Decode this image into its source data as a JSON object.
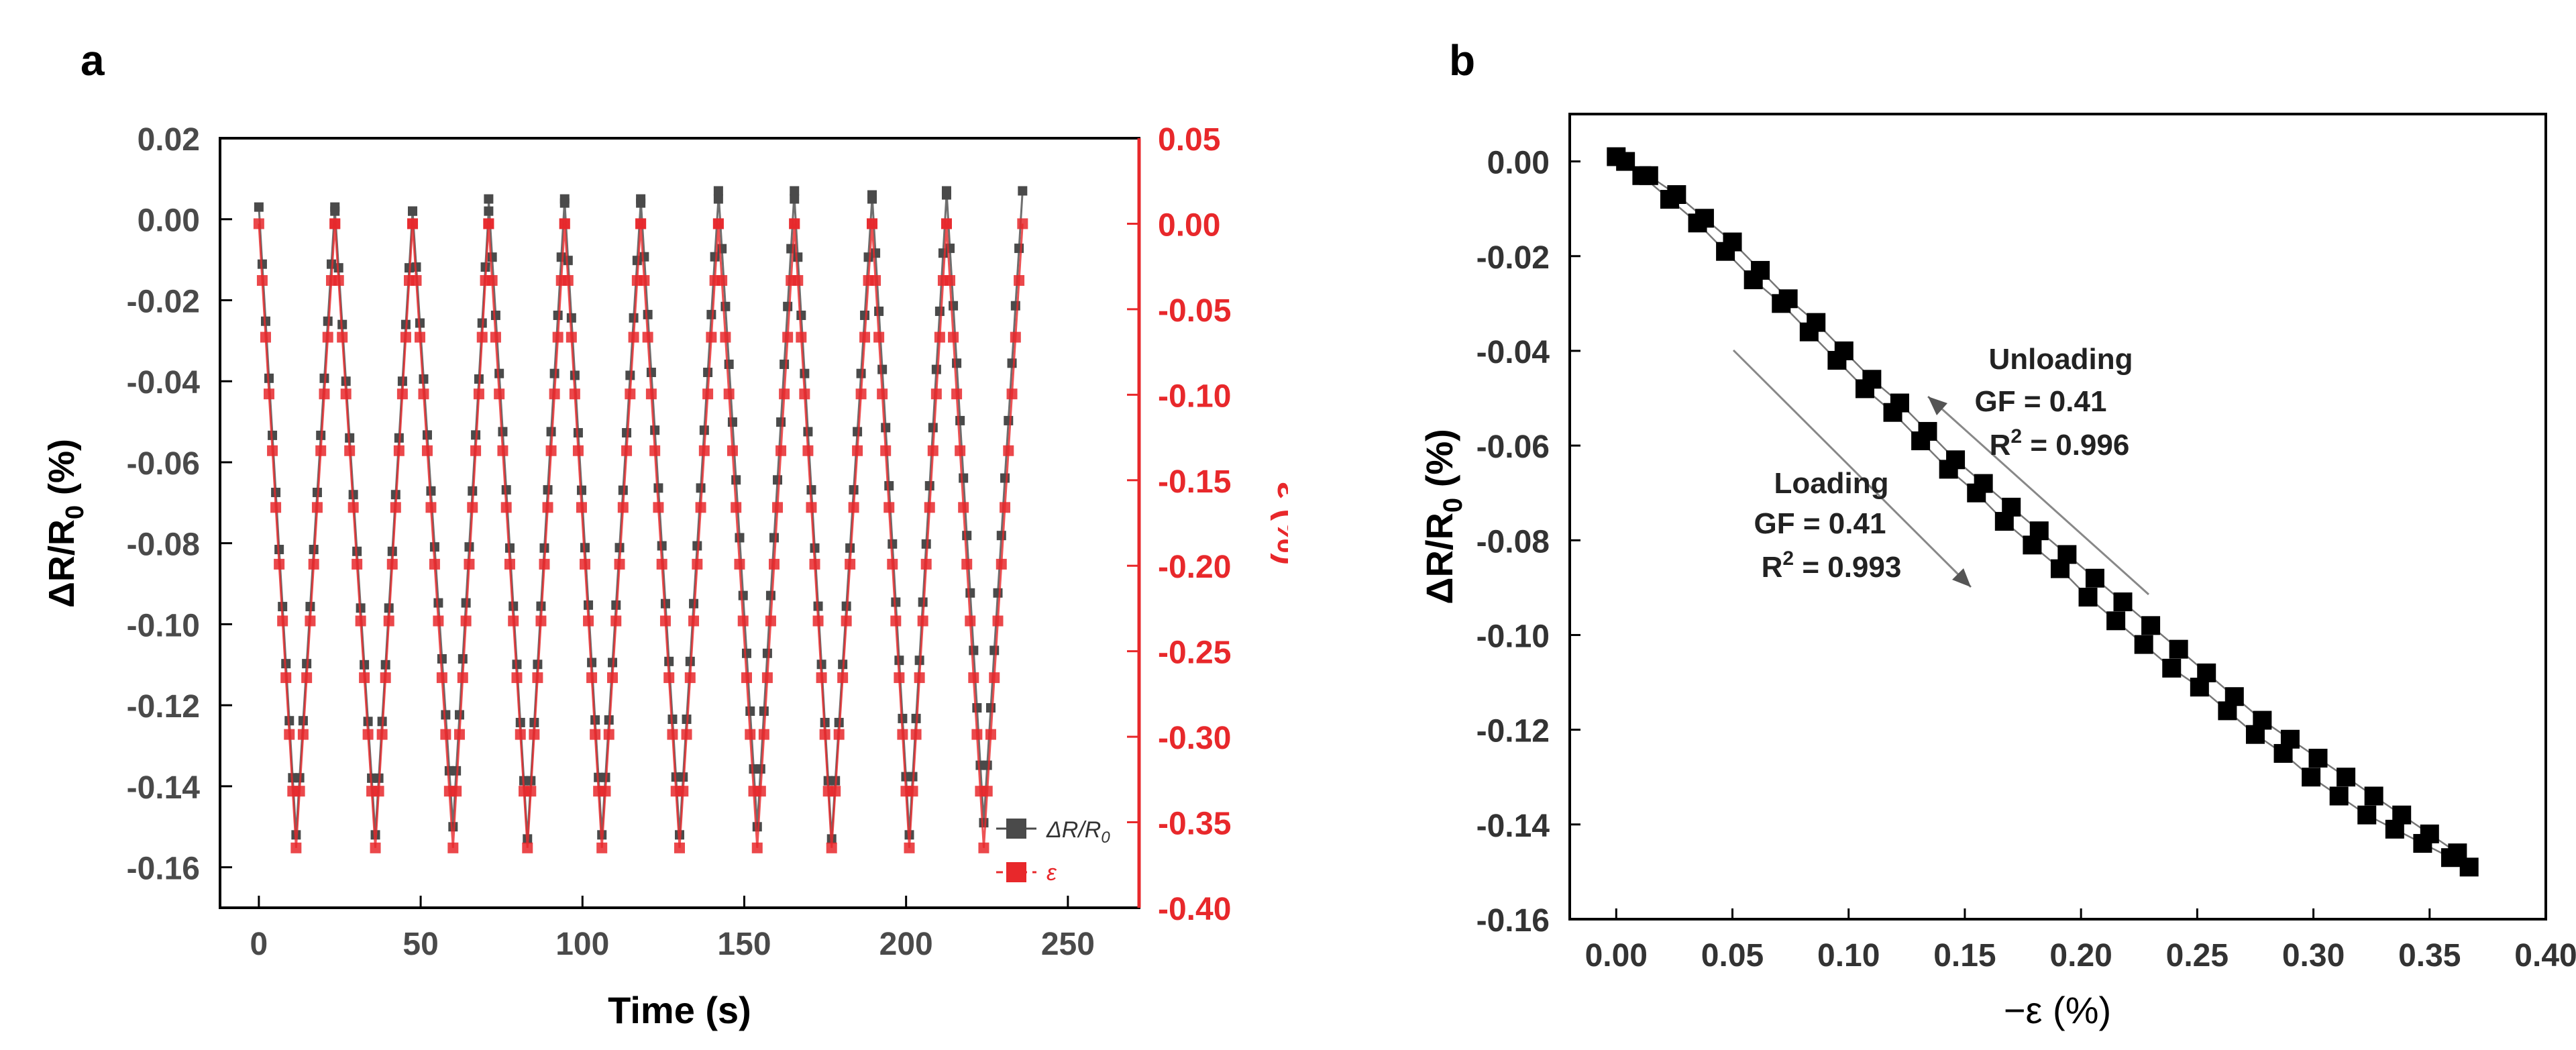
{
  "figure": {
    "panel_a_label": "a",
    "panel_b_label": "b"
  },
  "colors": {
    "gray": "#4a4a4a",
    "red": "#e8282b",
    "black": "#000000",
    "dark_line": "#555555",
    "light_line": "#888888"
  },
  "chart_data": [
    {
      "panel": "a",
      "type": "line",
      "title": "",
      "xlabel": "Time (s)",
      "ylabel_prefix": "ΔR/R",
      "ylabel_sub": "0",
      "ylabel_suffix": " (%)",
      "y2label": "ε (%)",
      "xlim": [
        -12,
        272
      ],
      "ylim": [
        -0.17,
        0.02
      ],
      "y2lim": [
        -0.4,
        0.05
      ],
      "xticks": [
        0,
        50,
        100,
        150,
        200,
        250
      ],
      "xtick_labels": [
        "0",
        "50",
        "100",
        "150",
        "200",
        "250"
      ],
      "yticks": [
        0.02,
        0.0,
        -0.02,
        -0.04,
        -0.06,
        -0.08,
        -0.1,
        -0.12,
        -0.14,
        -0.16
      ],
      "ytick_labels": [
        "0.02",
        "0.00",
        "-0.02",
        "-0.04",
        "-0.06",
        "-0.08",
        "-0.10",
        "-0.12",
        "-0.14",
        "-0.16"
      ],
      "y2ticks": [
        0.05,
        0.0,
        -0.05,
        -0.1,
        -0.15,
        -0.2,
        -0.25,
        -0.3,
        -0.35,
        -0.4
      ],
      "y2tick_labels": [
        "0.05",
        "0.00",
        "-0.05",
        "-0.10",
        "-0.15",
        "-0.20",
        "-0.25",
        "-0.30",
        "-0.35",
        "-0.40"
      ],
      "legend": {
        "position": "bottom-right",
        "entries": [
          {
            "name": "ΔR/R0",
            "text_main": "ΔR/R",
            "text_sub": "0",
            "color": "#4a4a4a"
          },
          {
            "name": "ε",
            "text_main": "ε",
            "text_sub": "",
            "color": "#e8282b"
          }
        ]
      },
      "series": [
        {
          "name": "ΔR/R0",
          "axis": "left",
          "color": "#4a4a4a",
          "cycles": [
            {
              "start": 0,
              "peak": 11.5,
              "end": 23.5,
              "min": -0.152,
              "top": 0.003
            },
            {
              "start": 23.5,
              "peak": 36,
              "end": 47.5,
              "min": -0.152,
              "top": 0.002
            },
            {
              "start": 47.5,
              "peak": 60,
              "end": 71,
              "min": -0.15,
              "top": 0.002
            },
            {
              "start": 71,
              "peak": 83,
              "end": 94.5,
              "min": -0.153,
              "top": 0.005
            },
            {
              "start": 94.5,
              "peak": 106,
              "end": 118,
              "min": -0.152,
              "top": 0.004
            },
            {
              "start": 118,
              "peak": 130,
              "end": 142,
              "min": -0.152,
              "top": 0.005
            },
            {
              "start": 142,
              "peak": 154,
              "end": 165.5,
              "min": -0.15,
              "top": 0.007
            },
            {
              "start": 165.5,
              "peak": 177,
              "end": 189.5,
              "min": -0.153,
              "top": 0.005
            },
            {
              "start": 189.5,
              "peak": 201,
              "end": 212.5,
              "min": -0.152,
              "top": 0.006
            },
            {
              "start": 212.5,
              "peak": 224,
              "end": 236,
              "min": -0.149,
              "top": 0.007
            }
          ]
        },
        {
          "name": "ε",
          "axis": "right",
          "color": "#e8282b",
          "cycles": [
            {
              "start": 0,
              "peak": 11.5,
              "end": 23.5,
              "min": -0.365,
              "top": 0.0
            },
            {
              "start": 23.5,
              "peak": 36,
              "end": 47.5,
              "min": -0.365,
              "top": 0.0
            },
            {
              "start": 47.5,
              "peak": 60,
              "end": 71,
              "min": -0.365,
              "top": 0.0
            },
            {
              "start": 71,
              "peak": 83,
              "end": 94.5,
              "min": -0.365,
              "top": 0.0
            },
            {
              "start": 94.5,
              "peak": 106,
              "end": 118,
              "min": -0.365,
              "top": 0.0
            },
            {
              "start": 118,
              "peak": 130,
              "end": 142,
              "min": -0.365,
              "top": 0.0
            },
            {
              "start": 142,
              "peak": 154,
              "end": 165.5,
              "min": -0.365,
              "top": 0.0
            },
            {
              "start": 165.5,
              "peak": 177,
              "end": 189.5,
              "min": -0.365,
              "top": 0.0
            },
            {
              "start": 189.5,
              "peak": 201,
              "end": 212.5,
              "min": -0.365,
              "top": 0.0
            },
            {
              "start": 212.5,
              "peak": 224,
              "end": 236,
              "min": -0.365,
              "top": 0.0
            }
          ]
        }
      ]
    },
    {
      "panel": "b",
      "type": "scatter",
      "title": "",
      "xlabel": "−ε (%)",
      "ylabel_prefix": "ΔR/R",
      "ylabel_sub": "0",
      "ylabel_suffix": " (%)",
      "xlim": [
        -0.02,
        0.4
      ],
      "ylim": [
        -0.16,
        0.01
      ],
      "xticks": [
        0.0,
        0.05,
        0.1,
        0.15,
        0.2,
        0.25,
        0.3,
        0.35,
        0.4
      ],
      "xtick_labels": [
        "0.00",
        "0.05",
        "0.10",
        "0.15",
        "0.20",
        "0.25",
        "0.30",
        "0.35",
        "0.40"
      ],
      "yticks": [
        0.0,
        -0.02,
        -0.04,
        -0.06,
        -0.08,
        -0.1,
        -0.12,
        -0.14,
        -0.16
      ],
      "ytick_labels": [
        "0.00",
        "-0.02",
        "-0.04",
        "-0.06",
        "-0.08",
        "-0.10",
        "-0.12",
        "-0.14",
        "-0.16"
      ],
      "series": [
        {
          "name": "Loading",
          "color": "#000000",
          "x": [
            0.0,
            0.011,
            0.023,
            0.035,
            0.047,
            0.059,
            0.071,
            0.083,
            0.095,
            0.107,
            0.119,
            0.131,
            0.143,
            0.155,
            0.167,
            0.179,
            0.191,
            0.203,
            0.215,
            0.227,
            0.239,
            0.251,
            0.263,
            0.275,
            0.287,
            0.299,
            0.311,
            0.323,
            0.335,
            0.347,
            0.359,
            0.367
          ],
          "y": [
            0.001,
            -0.003,
            -0.008,
            -0.013,
            -0.019,
            -0.025,
            -0.03,
            -0.036,
            -0.042,
            -0.048,
            -0.053,
            -0.059,
            -0.065,
            -0.07,
            -0.076,
            -0.081,
            -0.086,
            -0.092,
            -0.097,
            -0.102,
            -0.107,
            -0.111,
            -0.116,
            -0.121,
            -0.125,
            -0.13,
            -0.134,
            -0.138,
            -0.141,
            -0.144,
            -0.147,
            -0.149
          ]
        },
        {
          "name": "Unloading",
          "color": "#000000",
          "x": [
            0.362,
            0.35,
            0.338,
            0.326,
            0.314,
            0.302,
            0.29,
            0.278,
            0.266,
            0.254,
            0.242,
            0.23,
            0.218,
            0.206,
            0.194,
            0.182,
            0.17,
            0.158,
            0.146,
            0.134,
            0.122,
            0.11,
            0.098,
            0.086,
            0.074,
            0.062,
            0.05,
            0.038,
            0.026,
            0.014,
            0.004
          ],
          "y": [
            -0.146,
            -0.142,
            -0.138,
            -0.134,
            -0.13,
            -0.126,
            -0.122,
            -0.118,
            -0.113,
            -0.108,
            -0.103,
            -0.098,
            -0.093,
            -0.088,
            -0.083,
            -0.078,
            -0.073,
            -0.068,
            -0.063,
            -0.057,
            -0.051,
            -0.046,
            -0.04,
            -0.034,
            -0.029,
            -0.023,
            -0.017,
            -0.012,
            -0.007,
            -0.003,
            0.0
          ]
        }
      ],
      "annotations": {
        "loading": {
          "title": "Loading",
          "gf": "GF = 0.41",
          "r2_prefix": "R",
          "r2_sup": "2",
          "r2_value": " = 0.993"
        },
        "unloading": {
          "title": "Unloading",
          "gf": "GF = 0.41",
          "r2_prefix": "R",
          "r2_sup": "2",
          "r2_value": " = 0.996"
        }
      }
    }
  ]
}
